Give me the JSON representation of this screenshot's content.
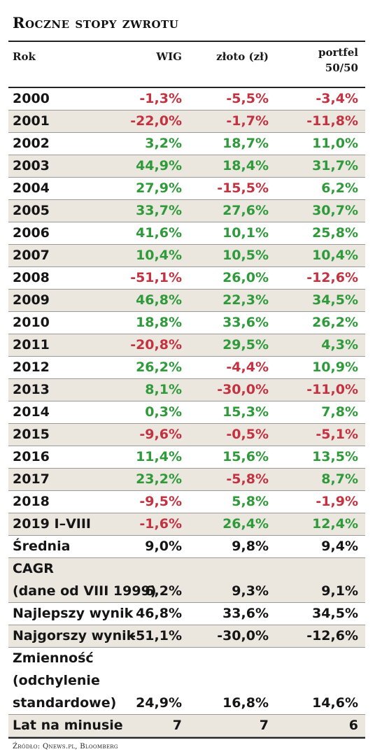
{
  "title": "Roczne stopy zwrotu",
  "headers": {
    "rok": "Rok",
    "wig": "WIG",
    "zloto": "złoto (zł)",
    "portfel_line1": "portfel",
    "portfel_line2": "50/50"
  },
  "rows": [
    {
      "label": [
        "2000"
      ],
      "wig": "-1,3%",
      "zloto": "-5,5%",
      "portfel": "-3,4%",
      "colors": [
        "neg",
        "neg",
        "neg"
      ],
      "shade": false
    },
    {
      "label": [
        "2001"
      ],
      "wig": "-22,0%",
      "zloto": "-1,7%",
      "portfel": "-11,8%",
      "colors": [
        "neg",
        "neg",
        "neg"
      ],
      "shade": true
    },
    {
      "label": [
        "2002"
      ],
      "wig": "3,2%",
      "zloto": "18,7%",
      "portfel": "11,0%",
      "colors": [
        "pos",
        "pos",
        "pos"
      ],
      "shade": false
    },
    {
      "label": [
        "2003"
      ],
      "wig": "44,9%",
      "zloto": "18,4%",
      "portfel": "31,7%",
      "colors": [
        "pos",
        "pos",
        "pos"
      ],
      "shade": true
    },
    {
      "label": [
        "2004"
      ],
      "wig": "27,9%",
      "zloto": "-15,5%",
      "portfel": "6,2%",
      "colors": [
        "pos",
        "neg",
        "pos"
      ],
      "shade": false
    },
    {
      "label": [
        "2005"
      ],
      "wig": "33,7%",
      "zloto": "27,6%",
      "portfel": "30,7%",
      "colors": [
        "pos",
        "pos",
        "pos"
      ],
      "shade": true
    },
    {
      "label": [
        "2006"
      ],
      "wig": "41,6%",
      "zloto": "10,1%",
      "portfel": "25,8%",
      "colors": [
        "pos",
        "pos",
        "pos"
      ],
      "shade": false
    },
    {
      "label": [
        "2007"
      ],
      "wig": "10,4%",
      "zloto": "10,5%",
      "portfel": "10,4%",
      "colors": [
        "pos",
        "pos",
        "pos"
      ],
      "shade": true
    },
    {
      "label": [
        "2008"
      ],
      "wig": "-51,1%",
      "zloto": "26,0%",
      "portfel": "-12,6%",
      "colors": [
        "neg",
        "pos",
        "neg"
      ],
      "shade": false
    },
    {
      "label": [
        "2009"
      ],
      "wig": "46,8%",
      "zloto": "22,3%",
      "portfel": "34,5%",
      "colors": [
        "pos",
        "pos",
        "pos"
      ],
      "shade": true
    },
    {
      "label": [
        "2010"
      ],
      "wig": "18,8%",
      "zloto": "33,6%",
      "portfel": "26,2%",
      "colors": [
        "pos",
        "pos",
        "pos"
      ],
      "shade": false
    },
    {
      "label": [
        "2011"
      ],
      "wig": "-20,8%",
      "zloto": "29,5%",
      "portfel": "4,3%",
      "colors": [
        "neg",
        "pos",
        "pos"
      ],
      "shade": true
    },
    {
      "label": [
        "2012"
      ],
      "wig": "26,2%",
      "zloto": "-4,4%",
      "portfel": "10,9%",
      "colors": [
        "pos",
        "neg",
        "pos"
      ],
      "shade": false
    },
    {
      "label": [
        "2013"
      ],
      "wig": "8,1%",
      "zloto": "-30,0%",
      "portfel": "-11,0%",
      "colors": [
        "pos",
        "neg",
        "neg"
      ],
      "shade": true
    },
    {
      "label": [
        "2014"
      ],
      "wig": "0,3%",
      "zloto": "15,3%",
      "portfel": "7,8%",
      "colors": [
        "pos",
        "pos",
        "pos"
      ],
      "shade": false
    },
    {
      "label": [
        "2015"
      ],
      "wig": "-9,6%",
      "zloto": "-0,5%",
      "portfel": "-5,1%",
      "colors": [
        "neg",
        "neg",
        "neg"
      ],
      "shade": true
    },
    {
      "label": [
        "2016"
      ],
      "wig": "11,4%",
      "zloto": "15,6%",
      "portfel": "13,5%",
      "colors": [
        "pos",
        "pos",
        "pos"
      ],
      "shade": false
    },
    {
      "label": [
        "2017"
      ],
      "wig": "23,2%",
      "zloto": "-5,8%",
      "portfel": "8,7%",
      "colors": [
        "pos",
        "neg",
        "pos"
      ],
      "shade": true
    },
    {
      "label": [
        "2018"
      ],
      "wig": "-9,5%",
      "zloto": "5,8%",
      "portfel": "-1,9%",
      "colors": [
        "neg",
        "pos",
        "neg"
      ],
      "shade": false
    },
    {
      "label": [
        "2019 I–VIII"
      ],
      "wig": "-1,6%",
      "zloto": "26,4%",
      "portfel": "12,4%",
      "colors": [
        "neg",
        "pos",
        "pos"
      ],
      "shade": true
    },
    {
      "label": [
        "Średnia"
      ],
      "wig": "9,0%",
      "zloto": "9,8%",
      "portfel": "9,4%",
      "colors": [
        "neu",
        "neu",
        "neu"
      ],
      "shade": false
    },
    {
      "label": [
        "CAGR",
        "(dane od VIII 1999)"
      ],
      "wig": "6,2%",
      "zloto": "9,3%",
      "portfel": "9,1%",
      "colors": [
        "neu",
        "neu",
        "neu"
      ],
      "shade": true
    },
    {
      "label": [
        "Najlepszy wynik"
      ],
      "wig": "46,8%",
      "zloto": "33,6%",
      "portfel": "34,5%",
      "colors": [
        "neu",
        "neu",
        "neu"
      ],
      "shade": false
    },
    {
      "label": [
        "Najgorszy wynik"
      ],
      "wig": "-51,1%",
      "zloto": "-30,0%",
      "portfel": "-12,6%",
      "colors": [
        "neu",
        "neu",
        "neu"
      ],
      "shade": true
    },
    {
      "label": [
        "Zmienność",
        "(odchylenie",
        "standardowe)"
      ],
      "wig": "24,9%",
      "zloto": "16,8%",
      "portfel": "14,6%",
      "colors": [
        "neu",
        "neu",
        "neu"
      ],
      "shade": false
    },
    {
      "label": [
        "Lat na minusie"
      ],
      "wig": "7",
      "zloto": "7",
      "portfel": "6",
      "colors": [
        "neu",
        "neu",
        "neu"
      ],
      "shade": true
    }
  ],
  "source": "Źródło: Qnews.pl, Bloomberg",
  "colors": {
    "positive": "#2e9a3a",
    "negative": "#c43140",
    "shade": "#ebe7df"
  }
}
